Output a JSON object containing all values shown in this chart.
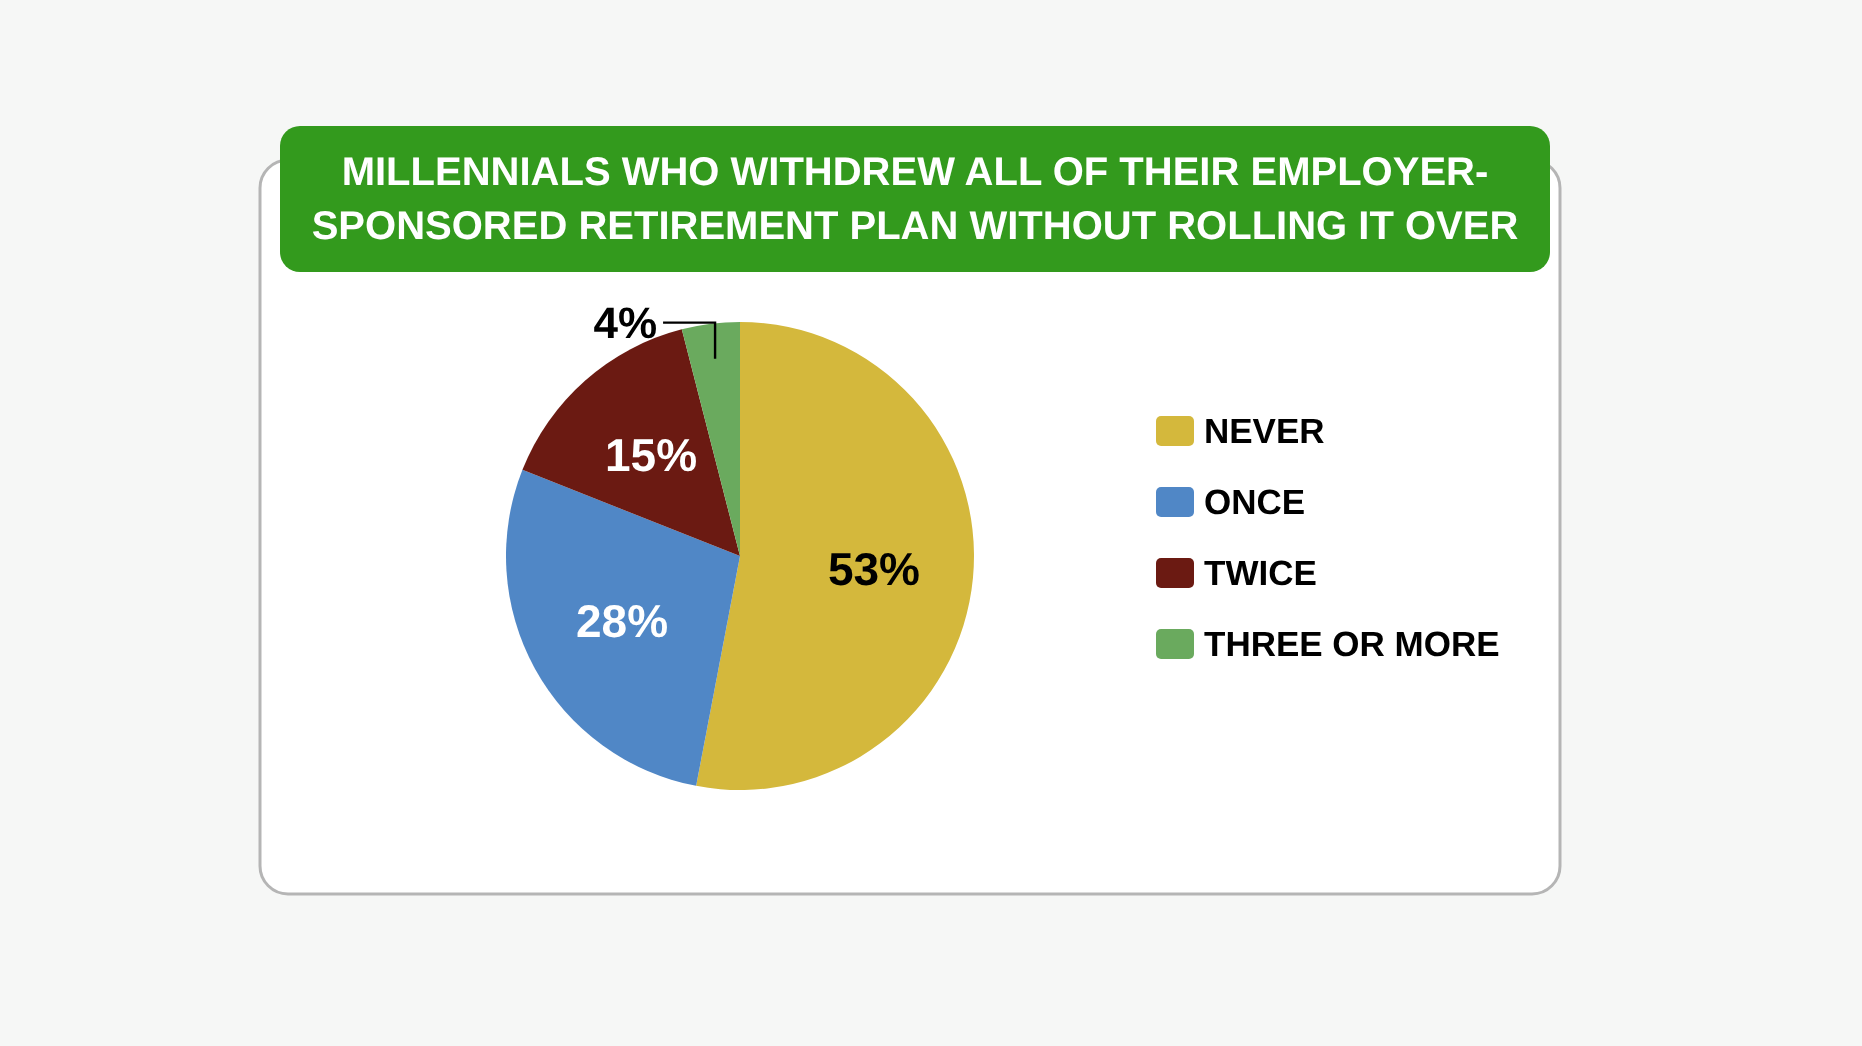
{
  "chart_data": {
    "type": "pie",
    "title": "MILLENNIALS WHO WITHDREW ALL OF THEIR EMPLOYER-SPONSORED RETIREMENT PLAN WITHOUT ROLLING IT OVER",
    "categories": [
      "NEVER",
      "ONCE",
      "TWICE",
      "THREE OR MORE"
    ],
    "values": [
      53,
      28,
      15,
      4
    ],
    "colors": [
      "#d4b83c",
      "#5087c6",
      "#6b1a12",
      "#6aaa5e"
    ],
    "value_labels": [
      "53%",
      "28%",
      "15%",
      "4%"
    ],
    "legend": "right"
  }
}
